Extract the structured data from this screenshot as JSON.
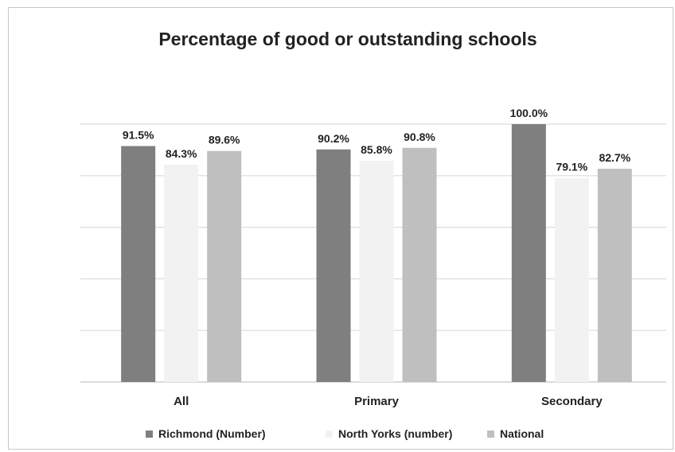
{
  "chart_data": {
    "type": "bar",
    "title": "Percentage of good or outstanding schools",
    "categories": [
      "All",
      "Primary",
      "Secondary"
    ],
    "series": [
      {
        "name": "Richmond (Number)",
        "color": "#7f7f7f",
        "values": [
          91.5,
          90.2,
          100.0
        ],
        "labels": [
          "91.5%",
          "90.2%",
          "100.0%"
        ]
      },
      {
        "name": "North Yorks (number)",
        "color": "#f2f2f2",
        "values": [
          84.3,
          85.8,
          79.1
        ],
        "labels": [
          "84.3%",
          "85.8%",
          "79.1%"
        ]
      },
      {
        "name": "National",
        "color": "#bfbfbf",
        "values": [
          89.6,
          90.8,
          82.7
        ],
        "labels": [
          "89.6%",
          "90.8%",
          "82.7%"
        ]
      }
    ],
    "ylim": [
      0,
      100
    ],
    "grid": true,
    "legend_position": "bottom"
  }
}
